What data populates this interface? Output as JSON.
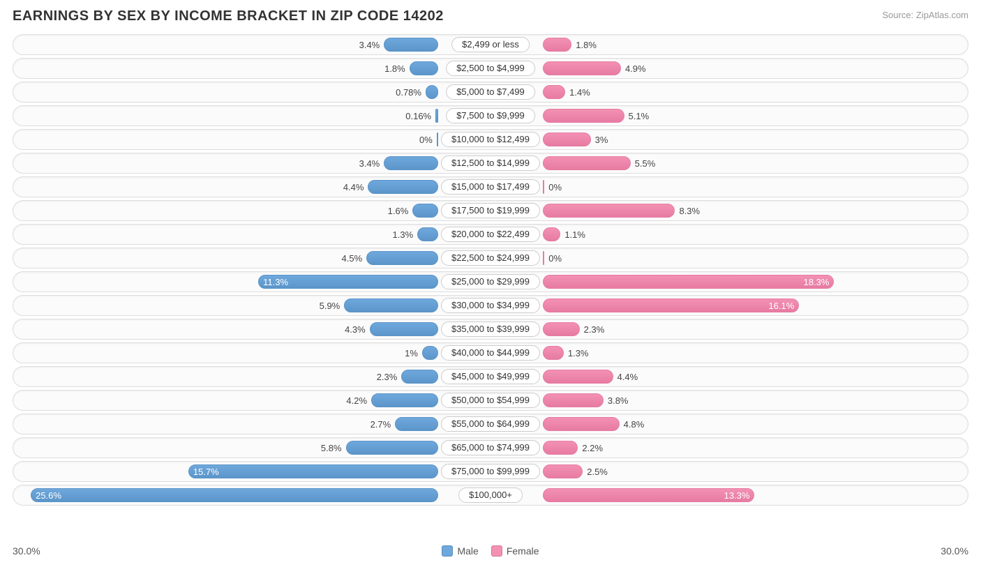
{
  "title": "EARNINGS BY SEX BY INCOME BRACKET IN ZIP CODE 14202",
  "source": "Source: ZipAtlas.com",
  "axis_max": 30.0,
  "axis_label_left": "30.0%",
  "axis_label_right": "30.0%",
  "colors": {
    "male_fill": "#6fa8dc",
    "male_border": "#5b95c9",
    "female_fill": "#f391b3",
    "female_border": "#e77ba2",
    "row_border": "#dddddd",
    "row_bg": "#fbfbfb",
    "label_border": "#cccccc",
    "text": "#444444",
    "title_text": "#333333"
  },
  "legend": {
    "male": "Male",
    "female": "Female"
  },
  "pct_inside_threshold": 10.0,
  "brackets": [
    {
      "label": "$2,499 or less",
      "male": 3.4,
      "female": 1.8
    },
    {
      "label": "$2,500 to $4,999",
      "male": 1.8,
      "female": 4.9
    },
    {
      "label": "$5,000 to $7,499",
      "male": 0.78,
      "female": 1.4
    },
    {
      "label": "$7,500 to $9,999",
      "male": 0.16,
      "female": 5.1
    },
    {
      "label": "$10,000 to $12,499",
      "male": 0.0,
      "female": 3.0
    },
    {
      "label": "$12,500 to $14,999",
      "male": 3.4,
      "female": 5.5
    },
    {
      "label": "$15,000 to $17,499",
      "male": 4.4,
      "female": 0.0
    },
    {
      "label": "$17,500 to $19,999",
      "male": 1.6,
      "female": 8.3
    },
    {
      "label": "$20,000 to $22,499",
      "male": 1.3,
      "female": 1.1
    },
    {
      "label": "$22,500 to $24,999",
      "male": 4.5,
      "female": 0.0
    },
    {
      "label": "$25,000 to $29,999",
      "male": 11.3,
      "female": 18.3
    },
    {
      "label": "$30,000 to $34,999",
      "male": 5.9,
      "female": 16.1
    },
    {
      "label": "$35,000 to $39,999",
      "male": 4.3,
      "female": 2.3
    },
    {
      "label": "$40,000 to $44,999",
      "male": 1.0,
      "female": 1.3
    },
    {
      "label": "$45,000 to $49,999",
      "male": 2.3,
      "female": 4.4
    },
    {
      "label": "$50,000 to $54,999",
      "male": 4.2,
      "female": 3.8
    },
    {
      "label": "$55,000 to $64,999",
      "male": 2.7,
      "female": 4.8
    },
    {
      "label": "$65,000 to $74,999",
      "male": 5.8,
      "female": 2.2
    },
    {
      "label": "$75,000 to $99,999",
      "male": 15.7,
      "female": 2.5
    },
    {
      "label": "$100,000+",
      "male": 25.6,
      "female": 13.3
    }
  ]
}
